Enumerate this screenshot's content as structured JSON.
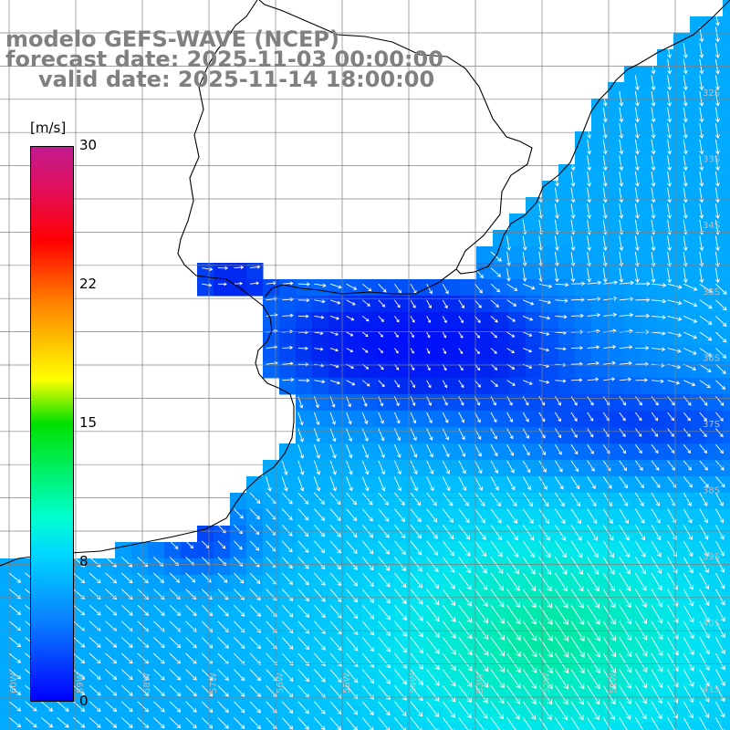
{
  "title": {
    "line1": "modelo GEFS-WAVE (NCEP)",
    "line2": "forecast date: 2025-11-03 00:00:00",
    "line3": "valid date: 2025-11-14 18:00:00"
  },
  "colorbar": {
    "unit": "[m/s]",
    "min": 0,
    "max": 30,
    "ticks": [
      "30",
      "22",
      "15",
      "8",
      "0"
    ]
  },
  "lat_labels": [
    "32S",
    "33S",
    "34S",
    "35S",
    "36S",
    "37S",
    "38S",
    "39S",
    "40S",
    "41S"
  ],
  "lon_labels": [
    "60W",
    "59W",
    "58W",
    "57W",
    "56W",
    "55W",
    "54W",
    "53W",
    "52W",
    "51W"
  ],
  "colors": {
    "land": "#ffffff",
    "grid": "#808080",
    "coast": "#000000",
    "arrow": "#ffffff",
    "low_speed": "#0030f0",
    "mid_speed": "#00c8f0",
    "high_speed": "#00e070"
  },
  "map": {
    "region": "Rio de la Plata / Uruguay / southern Brazil coast",
    "variable": "wind speed and direction",
    "speed_range_shown": [
      0,
      12
    ]
  }
}
